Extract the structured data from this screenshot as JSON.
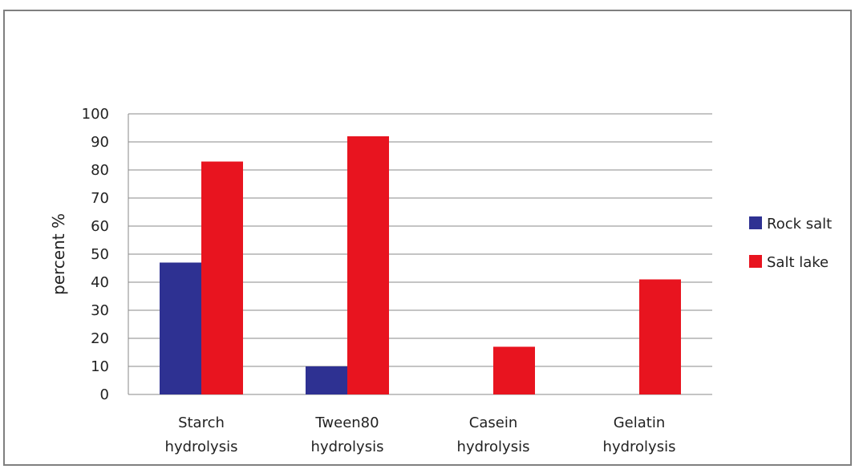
{
  "chart_data": {
    "type": "bar",
    "ylabel": "percent %",
    "xlabel": "",
    "ylim": [
      0,
      100
    ],
    "yticks": [
      0,
      10,
      20,
      30,
      40,
      50,
      60,
      70,
      80,
      90,
      100
    ],
    "grid": true,
    "legend_position": "right",
    "categories": [
      [
        "Starch",
        "hydrolysis"
      ],
      [
        "Tween80",
        "hydrolysis"
      ],
      [
        "Casein",
        "hydrolysis"
      ],
      [
        "Gelatin",
        "hydrolysis"
      ]
    ],
    "series": [
      {
        "name": "Rock salt",
        "color": "#2e3192",
        "values": [
          47,
          10,
          0,
          0
        ]
      },
      {
        "name": "Salt lake",
        "color": "#e8141f",
        "values": [
          83,
          92,
          17,
          41
        ]
      }
    ]
  }
}
